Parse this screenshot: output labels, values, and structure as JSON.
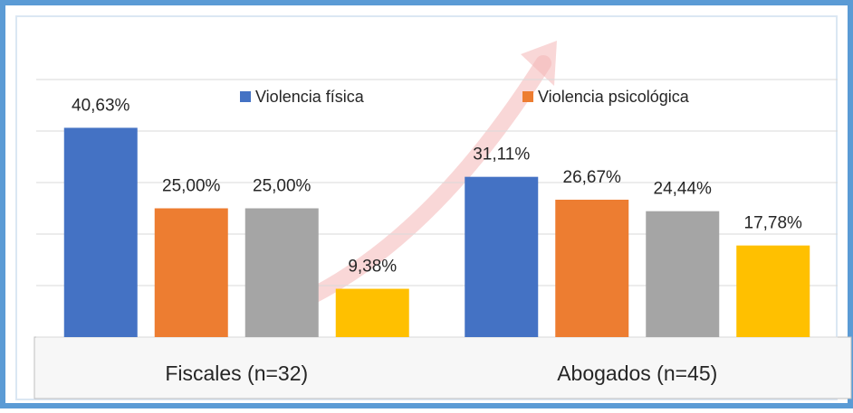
{
  "chart_data": {
    "type": "bar",
    "categories": [
      "Fiscales (n=32)",
      "Abogados (n=45)"
    ],
    "series": [
      {
        "name": "Violencia física",
        "color": "#4472c4",
        "values": [
          40.63,
          31.11
        ],
        "value_labels": [
          "40,63%",
          "31,11%"
        ]
      },
      {
        "name": "Violencia psicológica",
        "color": "#ed7d31",
        "values": [
          25.0,
          26.67
        ],
        "value_labels": [
          "25,00%",
          "26,67%"
        ]
      },
      {
        "color": "#a5a5a5",
        "values": [
          25.0,
          24.44
        ],
        "value_labels": [
          "25,00%",
          "24,44%"
        ]
      },
      {
        "color": "#ffc000",
        "values": [
          9.38,
          17.78
        ],
        "value_labels": [
          "9,38%",
          "17,78%"
        ]
      }
    ],
    "ylim": [
      0,
      50
    ],
    "yticks": [
      0,
      10,
      20,
      30,
      40,
      50
    ],
    "grid": true,
    "legend": "top"
  }
}
